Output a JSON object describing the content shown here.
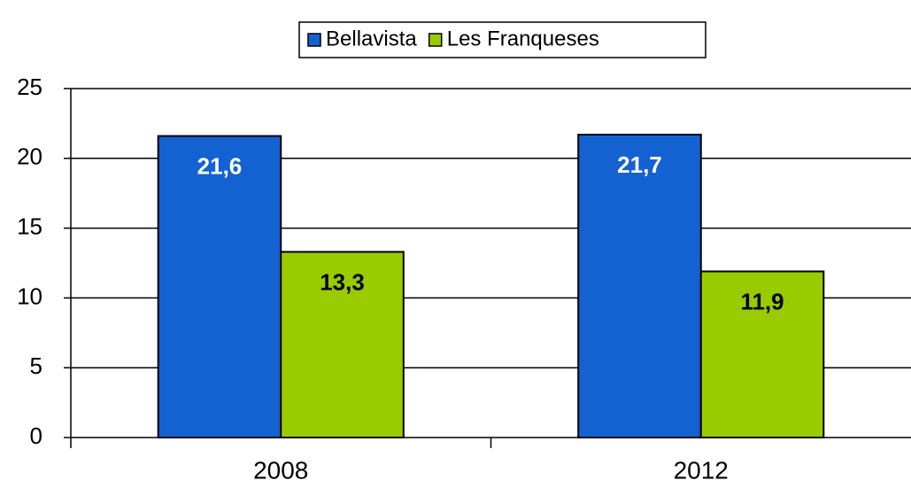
{
  "chart_data": {
    "type": "bar",
    "categories": [
      "2008",
      "2012"
    ],
    "series": [
      {
        "name": "Bellavista",
        "color": "#1462d2",
        "values": [
          21.6,
          21.7
        ],
        "value_labels": [
          "21,6",
          "21,7"
        ],
        "label_color": "#ffffff"
      },
      {
        "name": "Les Franqueses",
        "color": "#99cc00",
        "values": [
          13.3,
          11.9
        ],
        "value_labels": [
          "13,3",
          "11,9"
        ],
        "label_color": "#000000"
      }
    ],
    "ylim": [
      0,
      25
    ],
    "yticks": [
      0,
      5,
      10,
      15,
      20,
      25
    ],
    "grid": true,
    "legend": "top"
  }
}
